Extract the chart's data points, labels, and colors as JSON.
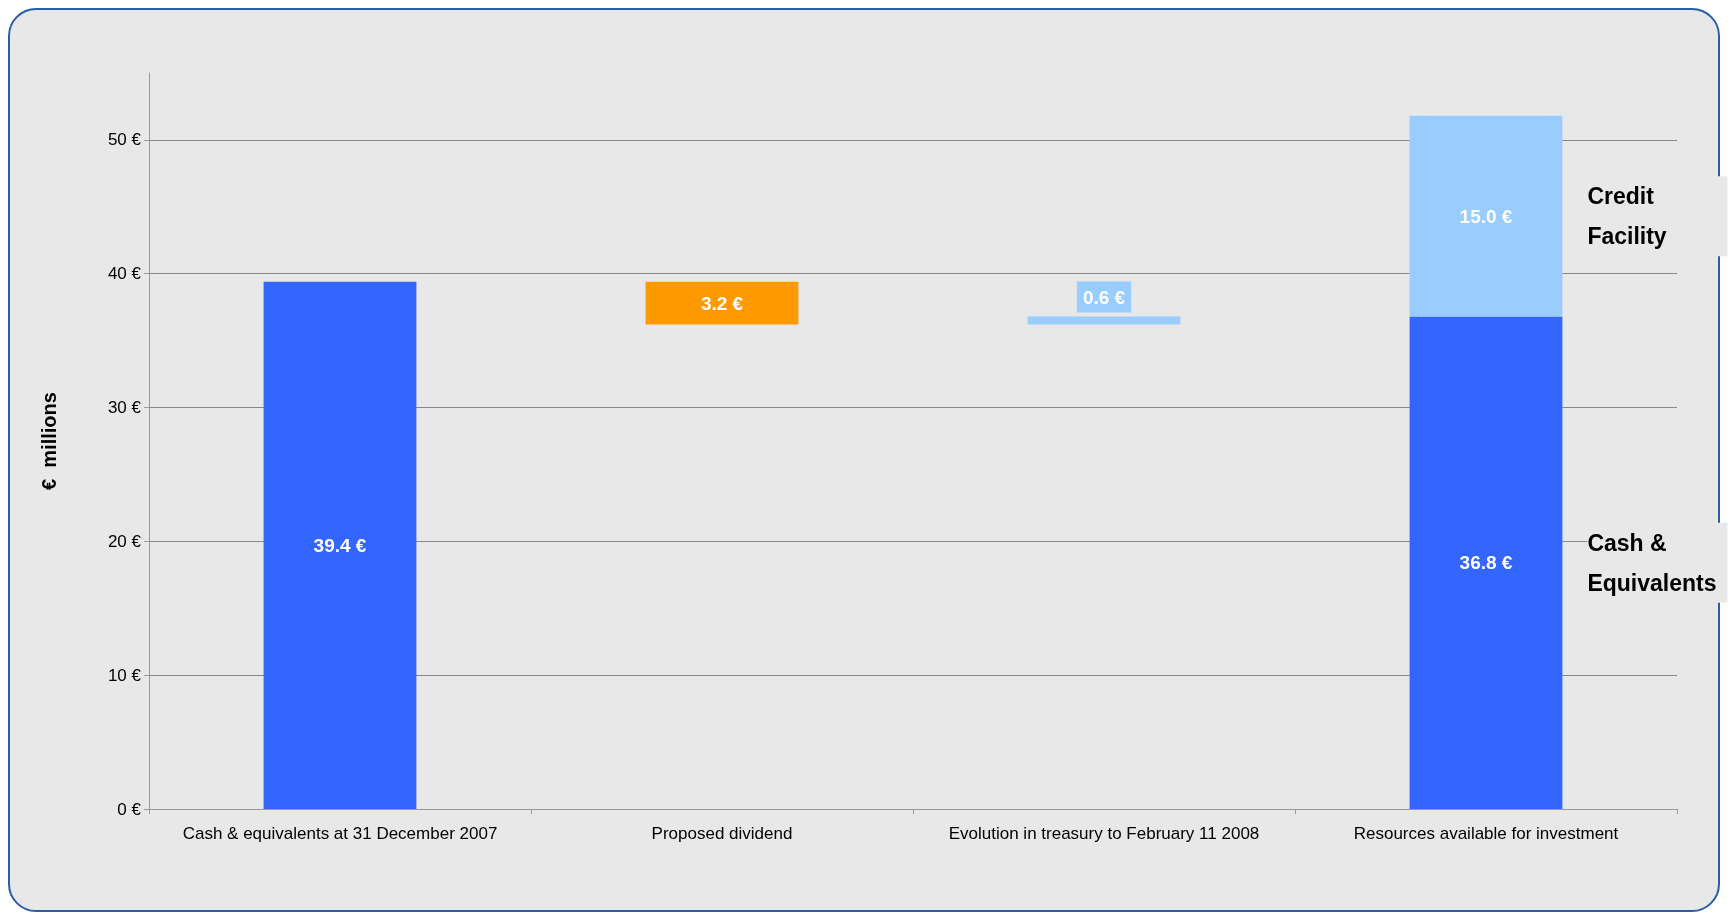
{
  "chart_data": {
    "type": "bar",
    "stacked": true,
    "ylabel": "€  millions",
    "categories": [
      "Cash & equivalents at 31 December 2007",
      "Proposed dividend",
      "Evolution in treasury to February 11 2008",
      "Resources available for investment"
    ],
    "series": [
      {
        "name": "Cash & Equivalents",
        "color": "#3366ff",
        "values": [
          39.4,
          null,
          null,
          36.8
        ],
        "value_labels": [
          "39.4 €",
          null,
          null,
          "36.8 €"
        ]
      },
      {
        "color": "#ff9900",
        "values": [
          null,
          3.2,
          null,
          null
        ],
        "base": [
          null,
          36.2,
          null,
          null
        ],
        "value_labels": [
          null,
          "3.2 €",
          null,
          null
        ]
      },
      {
        "color": "#99ccff",
        "values": [
          null,
          null,
          0.6,
          null
        ],
        "base": [
          null,
          null,
          36.2,
          null
        ],
        "value_labels": [
          null,
          null,
          "0.6 €",
          null
        ]
      },
      {
        "name": "Credit Facility",
        "color": "#99ccff",
        "values": [
          null,
          null,
          null,
          15.0
        ],
        "value_labels": [
          null,
          null,
          null,
          "15.0 €"
        ]
      }
    ],
    "ylim": [
      0,
      55
    ],
    "yticks": [
      {
        "value": 0,
        "label": "0 €"
      },
      {
        "value": 10,
        "label": "10 €"
      },
      {
        "value": 20,
        "label": "20 €"
      },
      {
        "value": 30,
        "label": "30 €"
      },
      {
        "value": 40,
        "label": "40 €"
      },
      {
        "value": 50,
        "label": "50 €"
      }
    ],
    "grid": "y",
    "legend": false
  }
}
